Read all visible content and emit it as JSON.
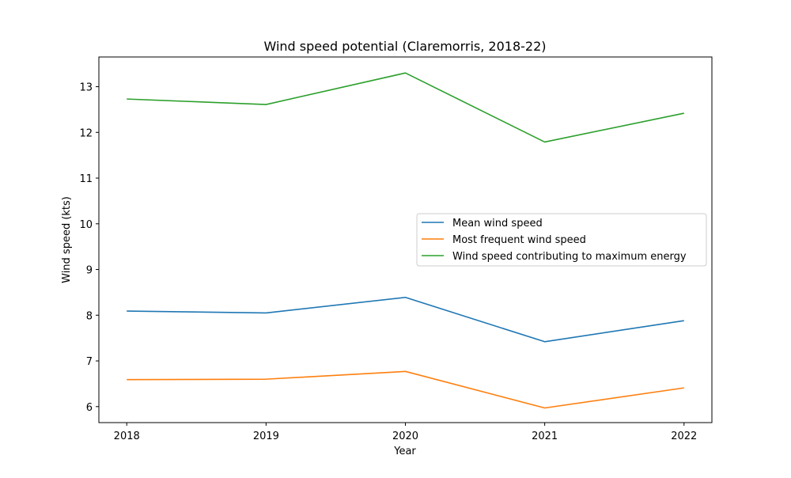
{
  "chart_data": {
    "type": "line",
    "title": "Wind speed potential (Claremorris, 2018-22)",
    "xlabel": "Year",
    "ylabel": "Wind speed (kts)",
    "x": [
      "2018",
      "2019",
      "2020",
      "2021",
      "2022"
    ],
    "xlim": [
      2017.8,
      2022.2
    ],
    "ylim": [
      5.65,
      13.65
    ],
    "yticks": [
      6,
      7,
      8,
      9,
      10,
      11,
      12,
      13
    ],
    "grid": false,
    "legend_position": "center-right",
    "series": [
      {
        "name": "Mean wind speed",
        "color": "#1f77b4",
        "values": [
          8.09,
          8.05,
          8.39,
          7.42,
          7.88
        ]
      },
      {
        "name": "Most frequent wind speed",
        "color": "#ff7f0e",
        "values": [
          6.59,
          6.6,
          6.77,
          5.97,
          6.41
        ]
      },
      {
        "name": "Wind speed contributing to maximum energy",
        "color": "#2ca02c",
        "values": [
          12.73,
          12.61,
          13.3,
          11.79,
          12.42
        ]
      }
    ]
  }
}
